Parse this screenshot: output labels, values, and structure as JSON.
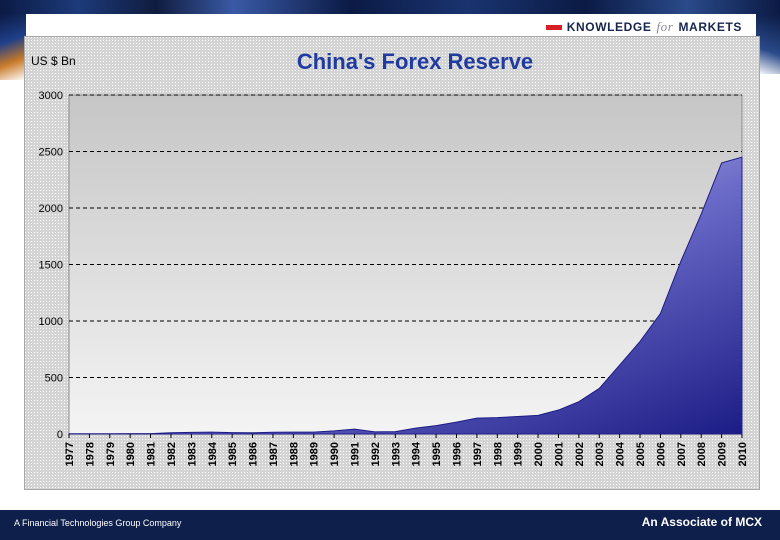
{
  "header": {
    "logo_part1": "KNOWLEDGE",
    "logo_for": "for",
    "logo_part2": "MARKETS"
  },
  "footer": {
    "left_text": "A Financial Technologies Group Company",
    "right_text": "An Associate of MCX"
  },
  "colors": {
    "header_band": "#0b1a44",
    "footer_band": "#0d1f4a",
    "area_dark": "#23238a",
    "area_light": "#ffffff",
    "title": "#1f3aa0",
    "logo_bar": "#d71f26"
  },
  "chart_data": {
    "type": "area",
    "title": "China's Forex Reserve",
    "ylabel": "US $ Bn",
    "xlabel": "",
    "ylim": [
      0,
      3000
    ],
    "yticks": [
      0,
      500,
      1000,
      1500,
      2000,
      2500,
      3000
    ],
    "grid": "dashed horizontal",
    "legend": "none",
    "x_labels": [
      "1977",
      "1978",
      "1979",
      "1980",
      "1981",
      "1982",
      "1983",
      "1984",
      "1985",
      "1986",
      "1987",
      "1988",
      "1989",
      "1990",
      "1991",
      "1992",
      "1993",
      "1994",
      "1995",
      "1996",
      "1997",
      "1998",
      "1999",
      "2000",
      "2001",
      "2002",
      "2003",
      "2004",
      "2005",
      "2006",
      "2007",
      "2008",
      "2009",
      "2010"
    ],
    "series": [
      {
        "values": [
          2,
          2,
          2,
          3,
          3,
          11,
          14,
          17,
          12,
          11,
          15,
          17,
          17,
          28,
          43,
          19,
          21,
          52,
          74,
          105,
          140,
          145,
          155,
          165,
          212,
          286,
          403,
          610,
          819,
          1066,
          1528,
          1946,
          2399,
          2450
        ]
      }
    ]
  }
}
